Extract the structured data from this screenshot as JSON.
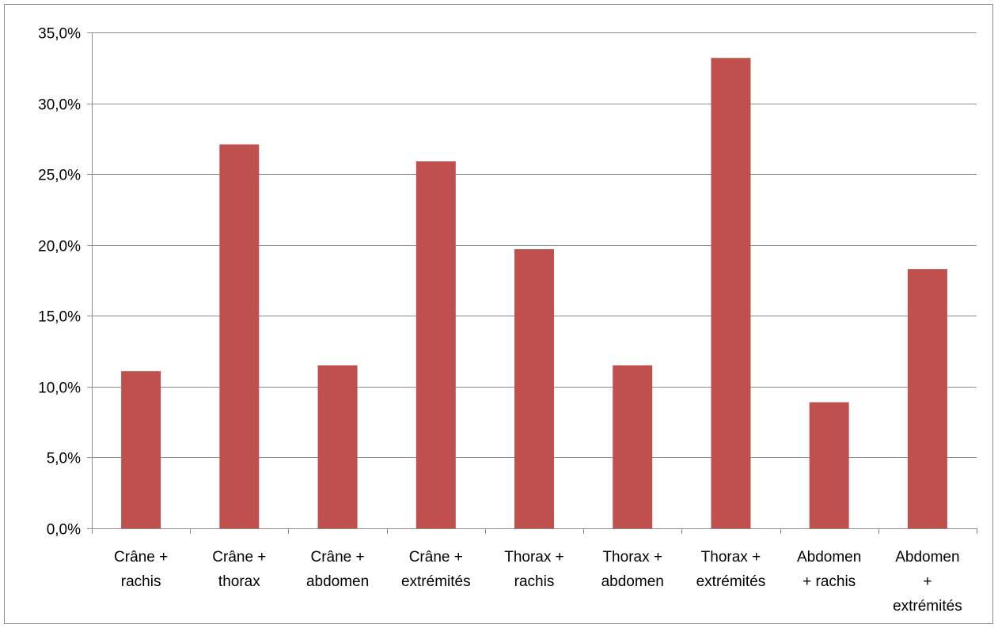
{
  "chart_data": {
    "type": "bar",
    "categories": [
      [
        "Crâne +",
        "rachis"
      ],
      [
        "Crâne +",
        "thorax"
      ],
      [
        "Crâne +",
        "abdomen"
      ],
      [
        "Crâne +",
        "extrémités"
      ],
      [
        "Thorax +",
        "rachis"
      ],
      [
        "Thorax +",
        "abdomen"
      ],
      [
        "Thorax +",
        "extrémités"
      ],
      [
        "Abdomen",
        "+ rachis"
      ],
      [
        "Abdomen",
        "+",
        "extrémités"
      ]
    ],
    "values": [
      11.1,
      27.1,
      11.5,
      25.9,
      19.7,
      11.5,
      33.2,
      8.9,
      18.3
    ],
    "ylim": [
      0,
      35
    ],
    "yticks": [
      0,
      5,
      10,
      15,
      20,
      25,
      30,
      35
    ],
    "ytick_labels": [
      "0,0%",
      "5,0%",
      "10,0%",
      "15,0%",
      "20,0%",
      "25,0%",
      "30,0%",
      "35,0%"
    ],
    "grid": true,
    "legend": "none",
    "bar_color": "#c0504d",
    "grid_color": "#8c8c8c"
  }
}
